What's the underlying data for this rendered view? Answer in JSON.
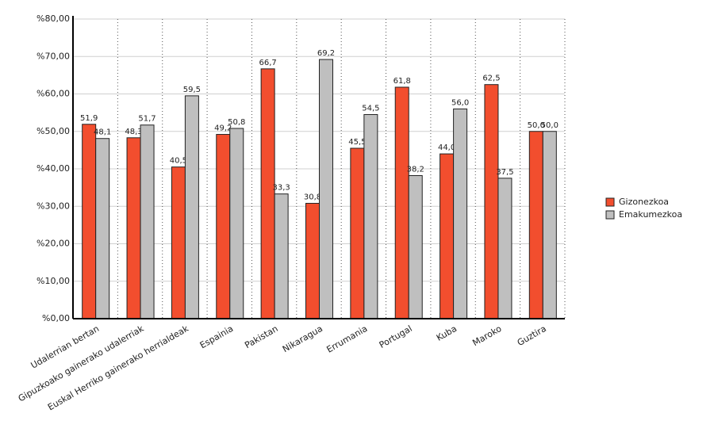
{
  "chart_data": {
    "type": "bar",
    "categories": [
      "Udalerrian bertan",
      "Gipuzkoako gainerako udalerriak",
      "Euskal Herriko gainerako herrialdeak",
      "Espainia",
      "Pakistan",
      "Nikaragua",
      "Errumania",
      "Portugal",
      "Kuba",
      "Maroko",
      "Guztira"
    ],
    "series": [
      {
        "name": "Gizonezkoa",
        "color": "#f24e2e",
        "values": [
          51.9,
          48.3,
          40.5,
          49.2,
          66.7,
          30.8,
          45.5,
          61.8,
          44.0,
          62.5,
          50.0
        ],
        "value_labels": [
          "51,9",
          "48,3",
          "40,5",
          "49,2",
          "66,7",
          "30,8",
          "45,5",
          "61,8",
          "44,0",
          "62,5",
          "50,0"
        ]
      },
      {
        "name": "Emakumezkoa",
        "color": "#bfbfbf",
        "values": [
          48.1,
          51.7,
          59.5,
          50.8,
          33.3,
          69.2,
          54.5,
          38.2,
          56.0,
          37.5,
          50.0
        ],
        "value_labels": [
          "48,1",
          "51,7",
          "59,5",
          "50,8",
          "33,3",
          "69,2",
          "54,5",
          "38,2",
          "56,0",
          "37,5",
          "50,0"
        ]
      }
    ],
    "ylim": [
      0,
      80
    ],
    "yticks": [
      {
        "value": 0,
        "label": "%0,00"
      },
      {
        "value": 10,
        "label": "%10,00"
      },
      {
        "value": 20,
        "label": "%20,00"
      },
      {
        "value": 30,
        "label": "%30,00"
      },
      {
        "value": 40,
        "label": "%40,00"
      },
      {
        "value": 50,
        "label": "%50,00"
      },
      {
        "value": 60,
        "label": "%60,00"
      },
      {
        "value": 70,
        "label": "%70,00"
      },
      {
        "value": 80,
        "label": "%80,00"
      }
    ],
    "grid": true,
    "legend": "right"
  }
}
